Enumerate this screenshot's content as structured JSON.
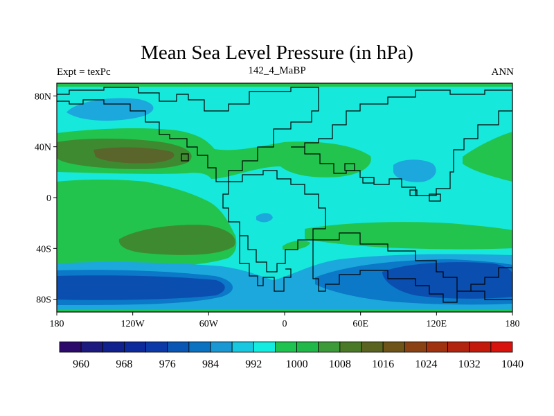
{
  "title": "Mean Sea Level Pressure (in hPa)",
  "left_label": "Expt = texPc",
  "center_label": "142_4_MaBP",
  "right_label": "ANN",
  "map": {
    "lon_range": [
      -180,
      180
    ],
    "lat_range": [
      -90,
      90
    ],
    "lon_ticks": [
      {
        "value": -180,
        "label": "180"
      },
      {
        "value": -120,
        "label": "120W"
      },
      {
        "value": -60,
        "label": "60W"
      },
      {
        "value": 0,
        "label": "0"
      },
      {
        "value": 60,
        "label": "60E"
      },
      {
        "value": 120,
        "label": "120E"
      },
      {
        "value": 180,
        "label": "180"
      }
    ],
    "lat_ticks": [
      {
        "value": 80,
        "label": "80N"
      },
      {
        "value": 40,
        "label": "40N"
      },
      {
        "value": 0,
        "label": "0"
      },
      {
        "value": -40,
        "label": "40S"
      },
      {
        "value": -80,
        "label": "80S"
      }
    ]
  },
  "colorbar": {
    "levels": [
      960,
      964,
      968,
      972,
      976,
      980,
      984,
      988,
      992,
      996,
      1000,
      1004,
      1008,
      1012,
      1016,
      1020,
      1024,
      1028,
      1032,
      1036,
      1040
    ],
    "labels": [
      "960",
      "968",
      "976",
      "984",
      "992",
      "1000",
      "1008",
      "1016",
      "1024",
      "1032",
      "1040"
    ],
    "colors": [
      "#2b0a6b",
      "#1c1a7e",
      "#10208c",
      "#0d2a9c",
      "#0b3aa8",
      "#0a56b4",
      "#0a72c0",
      "#1a98d4",
      "#18c8e0",
      "#13ece0",
      "#1fc450",
      "#20b848",
      "#3c9a38",
      "#4a7a28",
      "#5a6420",
      "#6e5418",
      "#8a4214",
      "#a03210",
      "#b2240e",
      "#c41a0c",
      "#d8120c"
    ]
  },
  "fields": {
    "background_color": "#16e8dc",
    "green_color": "#22c44e",
    "dark_green_color": "#3e8a30",
    "olive_color": "#59652a",
    "light_blue_color": "#1ca8dc",
    "mid_blue_color": "#0b78c8",
    "dark_blue_color": "#0a4eb0"
  }
}
